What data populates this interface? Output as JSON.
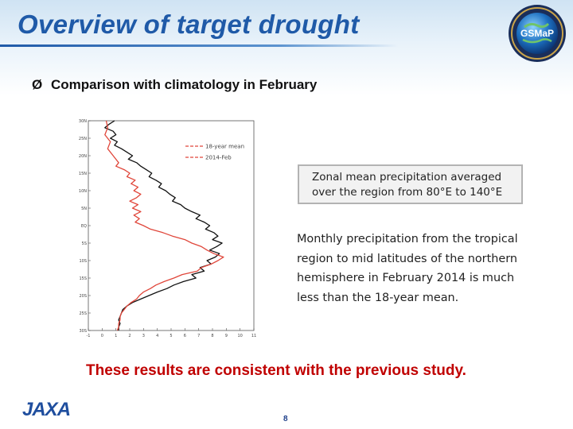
{
  "slide": {
    "title": "Overview of target drought",
    "bullet_marker": "Ø",
    "bullet_text": "Comparison with climatology in February",
    "callout_text": "Zonal mean precipitation averaged over the region from 80°E to 140°E",
    "description_text": "Monthly precipitation from the tropical region to mid latitudes of the northern hemisphere in February 2014 is much less than the 18-year mean.",
    "conclusion_text": "These results are consistent with the previous study.",
    "page_number": "8",
    "footer_logo_text": "JAXA",
    "emblem_text": "GSMaP"
  },
  "chart_data": {
    "type": "line",
    "orientation": "horizontal-profile",
    "xlabel": "",
    "ylabel": "",
    "xlim": [
      -1,
      11
    ],
    "ylim": [
      -30,
      30
    ],
    "x_ticks": [
      "-1",
      "0",
      "1",
      "2",
      "3",
      "4",
      "5",
      "6",
      "7",
      "8",
      "9",
      "10",
      "11"
    ],
    "y_ticks": [
      "30N",
      "25N",
      "20N",
      "15N",
      "10N",
      "5N",
      "EQ",
      "5S",
      "10S",
      "15S",
      "20S",
      "25S",
      "30S"
    ],
    "y_tick_values": [
      30,
      25,
      20,
      15,
      10,
      5,
      0,
      -5,
      -10,
      -15,
      -20,
      -25,
      -30
    ],
    "legend": [
      "18-year mean",
      "2014-Feb"
    ],
    "series": [
      {
        "name": "18-year mean",
        "color": "#111111",
        "points": [
          [
            0.9,
            30
          ],
          [
            0.5,
            29
          ],
          [
            0.2,
            28
          ],
          [
            0.8,
            27
          ],
          [
            1.0,
            26
          ],
          [
            0.6,
            25
          ],
          [
            1.1,
            24
          ],
          [
            0.9,
            23
          ],
          [
            1.4,
            22
          ],
          [
            1.8,
            21
          ],
          [
            2.2,
            20
          ],
          [
            1.9,
            19
          ],
          [
            2.5,
            18
          ],
          [
            2.8,
            17
          ],
          [
            3.2,
            16
          ],
          [
            3.6,
            15
          ],
          [
            3.4,
            14
          ],
          [
            3.9,
            13
          ],
          [
            4.3,
            12
          ],
          [
            4.1,
            11
          ],
          [
            4.6,
            10
          ],
          [
            4.9,
            9
          ],
          [
            5.3,
            8
          ],
          [
            5.1,
            7
          ],
          [
            5.7,
            6
          ],
          [
            6.0,
            5
          ],
          [
            6.5,
            4
          ],
          [
            7.1,
            3
          ],
          [
            6.8,
            2
          ],
          [
            7.4,
            1
          ],
          [
            7.8,
            0
          ],
          [
            7.5,
            -1
          ],
          [
            8.1,
            -2
          ],
          [
            8.4,
            -3
          ],
          [
            8.0,
            -4
          ],
          [
            8.7,
            -5
          ],
          [
            8.3,
            -6
          ],
          [
            7.8,
            -7
          ],
          [
            8.5,
            -8
          ],
          [
            8.2,
            -9
          ],
          [
            7.6,
            -10
          ],
          [
            7.9,
            -11
          ],
          [
            7.1,
            -12
          ],
          [
            7.4,
            -13
          ],
          [
            6.5,
            -14
          ],
          [
            6.8,
            -15
          ],
          [
            5.9,
            -16
          ],
          [
            5.2,
            -17
          ],
          [
            4.7,
            -18
          ],
          [
            4.0,
            -19
          ],
          [
            3.4,
            -20
          ],
          [
            2.8,
            -21
          ],
          [
            2.2,
            -22
          ],
          [
            1.8,
            -23
          ],
          [
            1.5,
            -24
          ],
          [
            1.4,
            -25
          ],
          [
            1.3,
            -26
          ],
          [
            1.2,
            -27
          ],
          [
            1.3,
            -28
          ],
          [
            1.2,
            -29
          ],
          [
            1.2,
            -30
          ]
        ]
      },
      {
        "name": "2014-Feb",
        "color": "#e0463a",
        "points": [
          [
            0.3,
            30
          ],
          [
            0.4,
            28
          ],
          [
            0.2,
            26
          ],
          [
            0.6,
            24
          ],
          [
            0.4,
            22
          ],
          [
            0.8,
            20
          ],
          [
            1.2,
            18
          ],
          [
            1.0,
            17
          ],
          [
            1.6,
            16
          ],
          [
            2.0,
            15
          ],
          [
            1.8,
            14
          ],
          [
            2.4,
            13
          ],
          [
            2.1,
            12
          ],
          [
            2.6,
            11
          ],
          [
            2.3,
            10
          ],
          [
            2.8,
            9
          ],
          [
            2.5,
            8
          ],
          [
            2.0,
            7
          ],
          [
            2.6,
            6
          ],
          [
            2.2,
            5
          ],
          [
            2.8,
            4
          ],
          [
            2.3,
            3
          ],
          [
            2.7,
            2
          ],
          [
            2.4,
            1
          ],
          [
            3.0,
            0
          ],
          [
            3.5,
            -1
          ],
          [
            4.4,
            -2
          ],
          [
            5.1,
            -3
          ],
          [
            6.0,
            -4
          ],
          [
            6.5,
            -5
          ],
          [
            7.2,
            -6
          ],
          [
            7.6,
            -7
          ],
          [
            8.1,
            -8
          ],
          [
            8.8,
            -9
          ],
          [
            8.4,
            -10
          ],
          [
            7.9,
            -11
          ],
          [
            7.2,
            -12
          ],
          [
            6.9,
            -13
          ],
          [
            5.8,
            -14
          ],
          [
            5.2,
            -15
          ],
          [
            4.5,
            -16
          ],
          [
            3.9,
            -17
          ],
          [
            3.5,
            -18
          ],
          [
            3.0,
            -19
          ],
          [
            2.7,
            -20
          ],
          [
            2.5,
            -21
          ],
          [
            2.1,
            -22
          ],
          [
            1.8,
            -23
          ],
          [
            1.6,
            -24
          ],
          [
            1.4,
            -25
          ],
          [
            1.3,
            -26
          ],
          [
            1.3,
            -27
          ],
          [
            1.2,
            -28
          ],
          [
            1.2,
            -29
          ],
          [
            1.1,
            -30
          ]
        ]
      }
    ]
  }
}
